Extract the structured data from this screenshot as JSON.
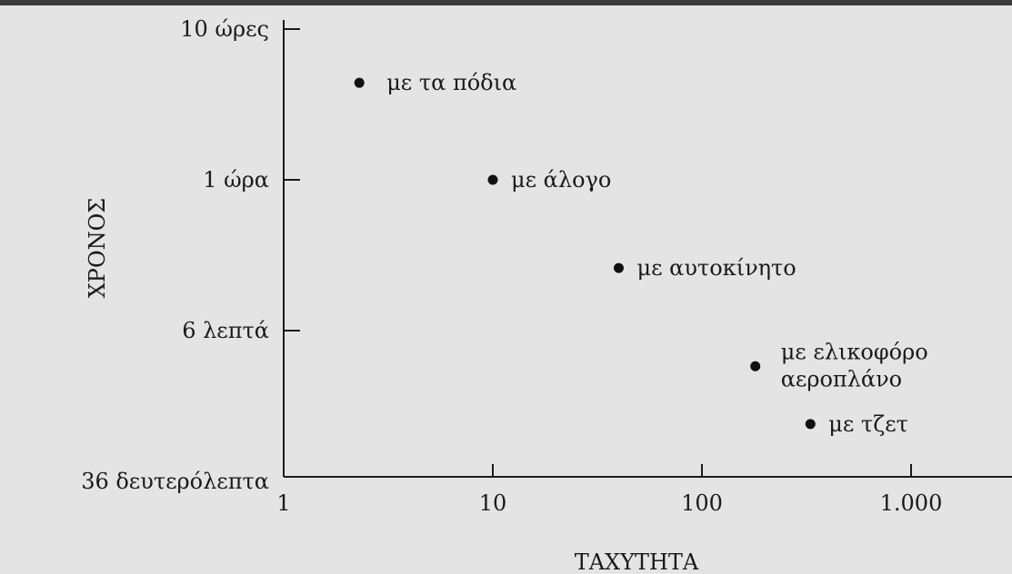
{
  "chart_data": {
    "type": "scatter",
    "title": "",
    "xlabel": "ΤΑΧΥΤΗΤΑ",
    "ylabel": "ΧΡΟΝΟΣ",
    "x_scale": "log",
    "y_scale": "log",
    "xlim": [
      1,
      3000
    ],
    "ylim": [
      0.01,
      10
    ],
    "x_ticks": [
      {
        "value": 1,
        "label": "1"
      },
      {
        "value": 10,
        "label": "10"
      },
      {
        "value": 100,
        "label": "100"
      },
      {
        "value": 1000,
        "label": "1.000"
      }
    ],
    "y_ticks": [
      {
        "value": 10,
        "label": "10 ώρες"
      },
      {
        "value": 1,
        "label": "1 ώρα"
      },
      {
        "value": 0.1,
        "label": "6 λεπτά"
      },
      {
        "value": 0.01,
        "label": "36 δευτερόλεπτα"
      }
    ],
    "points": [
      {
        "label": "με τα πόδια",
        "x": 2.3,
        "y": 4.4
      },
      {
        "label": "με άλογο",
        "x": 10,
        "y": 1.0
      },
      {
        "label": "με αυτοκίνητο",
        "x": 40,
        "y": 0.26
      },
      {
        "label": "με ελικοφόρο αεροπλάνο",
        "x": 180,
        "y": 0.058
      },
      {
        "label": "με τζετ",
        "x": 330,
        "y": 0.024
      }
    ],
    "grid": false,
    "legend": "none"
  }
}
